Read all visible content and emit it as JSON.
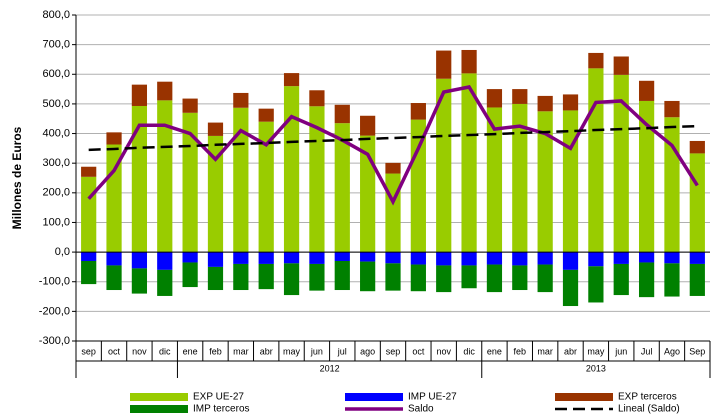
{
  "chart_data": {
    "type": "bar",
    "y_label": "Millones de Euros",
    "categories": [
      "sep",
      "oct",
      "nov",
      "dic",
      "ene",
      "feb",
      "mar",
      "abr",
      "may",
      "jun",
      "jul",
      "ago",
      "sep",
      "oct",
      "nov",
      "dic",
      "ene",
      "feb",
      "mar",
      "abr",
      "may",
      "jun",
      "Jul",
      "Ago",
      "Sep"
    ],
    "years": [
      null,
      null,
      null,
      null,
      "2012",
      "2012",
      "2012",
      "2012",
      "2012",
      "2012",
      "2012",
      "2012",
      "2012",
      "2012",
      "2012",
      "2012",
      "2013",
      "2013",
      "2013",
      "2013",
      "2013",
      "2013",
      "2013",
      "2013",
      "2013"
    ],
    "ylim": [
      -300,
      800
    ],
    "yticks": [
      {
        "value": -300,
        "label": "-300,0"
      },
      {
        "value": -200,
        "label": "-200,0"
      },
      {
        "value": -100,
        "label": "-100,0"
      },
      {
        "value": 0,
        "label": "0,0"
      },
      {
        "value": 100,
        "label": "100,0"
      },
      {
        "value": 200,
        "label": "200,0"
      },
      {
        "value": 300,
        "label": "300,0"
      },
      {
        "value": 400,
        "label": "400,0"
      },
      {
        "value": 500,
        "label": "500,0"
      },
      {
        "value": 600,
        "label": "600,0"
      },
      {
        "value": 700,
        "label": "700,0"
      },
      {
        "value": 800,
        "label": "800,0"
      }
    ],
    "grid": true,
    "legend": "bottom",
    "series": [
      {
        "name": "EXP UE-27",
        "type": "bar",
        "color": "#99cc00",
        "values": [
          254,
          363,
          493,
          512,
          470,
          392,
          487,
          440,
          560,
          492,
          435,
          393,
          265,
          447,
          585,
          603,
          488,
          500,
          475,
          478,
          620,
          598,
          510,
          455,
          333
        ]
      },
      {
        "name": "IMP UE-27",
        "type": "bar",
        "color": "#0000ff",
        "values": [
          -30,
          -45,
          -55,
          -60,
          -35,
          -50,
          -40,
          -40,
          -38,
          -40,
          -30,
          -32,
          -38,
          -42,
          -45,
          -45,
          -42,
          -45,
          -42,
          -60,
          -48,
          -40,
          -35,
          -38,
          -40
        ]
      },
      {
        "name": "EXP terceros",
        "type": "bar",
        "color": "#993300",
        "values": [
          34,
          41,
          72,
          63,
          48,
          45,
          50,
          44,
          44,
          54,
          62,
          67,
          36,
          56,
          95,
          79,
          62,
          50,
          52,
          54,
          52,
          62,
          68,
          55,
          42
        ]
      },
      {
        "name": "IMP terceros",
        "type": "bar",
        "color": "#008000",
        "values": [
          -78,
          -83,
          -85,
          -88,
          -83,
          -78,
          -88,
          -85,
          -107,
          -90,
          -98,
          -100,
          -92,
          -90,
          -90,
          -77,
          -93,
          -83,
          -93,
          -122,
          -122,
          -105,
          -117,
          -112,
          -108
        ]
      },
      {
        "name": "Saldo",
        "type": "line",
        "color": "#800080",
        "values": [
          180,
          275,
          428,
          428,
          400,
          313,
          410,
          362,
          457,
          420,
          378,
          330,
          170,
          350,
          540,
          557,
          415,
          425,
          400,
          350,
          505,
          510,
          430,
          360,
          225
        ]
      },
      {
        "name": "Lineal (Saldo)",
        "type": "line",
        "color": "#000000",
        "dashed": true,
        "values": [
          345,
          348,
          352,
          355,
          358,
          362,
          365,
          368,
          372,
          375,
          378,
          382,
          385,
          388,
          392,
          395,
          398,
          402,
          405,
          408,
          412,
          415,
          418,
          422,
          425
        ]
      }
    ]
  }
}
